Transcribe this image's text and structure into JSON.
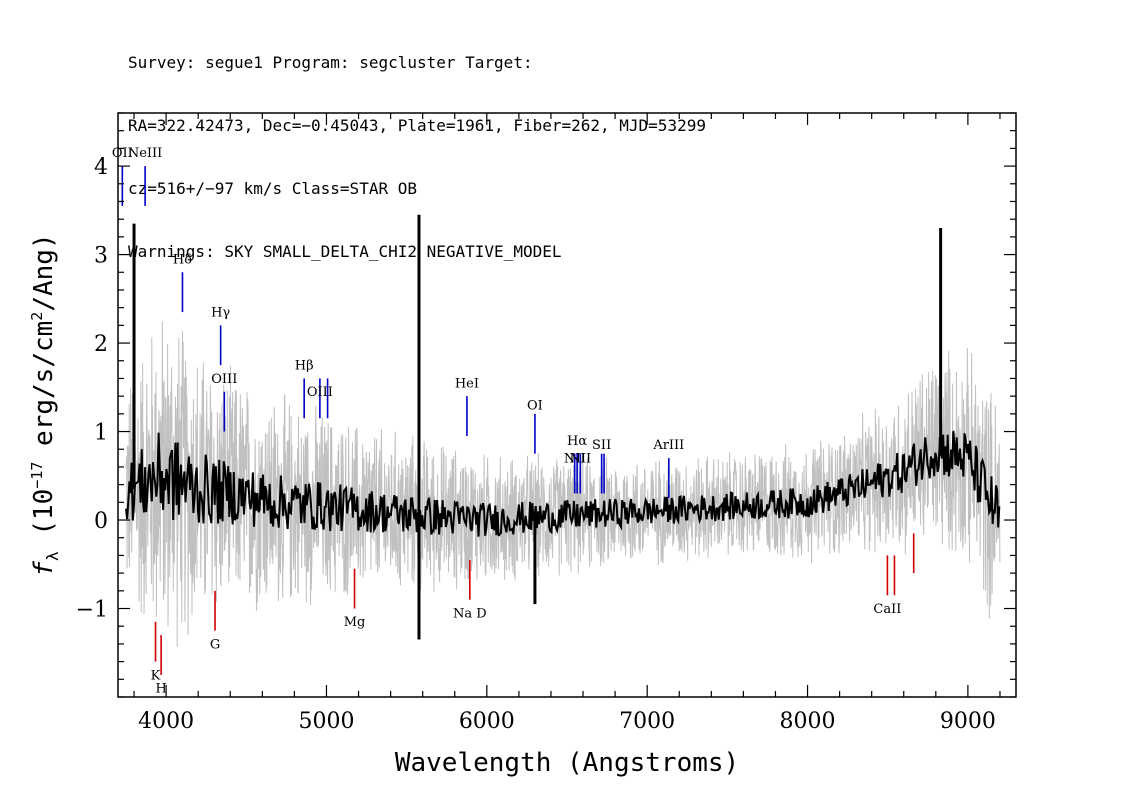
{
  "header": {
    "line1": "Survey: segue1 Program: segcluster Target:",
    "line2": "RA=322.42473, Dec=−0.45043, Plate=1961, Fiber=262, MJD=53299",
    "line3": "cz=516+/−97 km/s Class=STAR OB",
    "line4": "Warnings: SKY SMALL_DELTA_CHI2 NEGATIVE_MODEL"
  },
  "chart_data": {
    "type": "line",
    "xlabel": "Wavelength (Angstroms)",
    "ylabel": "f_λ (10^-17 erg/s/cm^2/Ang)",
    "xlim": [
      3700,
      9300
    ],
    "ylim": [
      -2.0,
      4.6
    ],
    "x_ticks": [
      4000,
      5000,
      6000,
      7000,
      8000,
      9000
    ],
    "y_ticks": [
      -1,
      0,
      1,
      2,
      3,
      4
    ],
    "series": [
      {
        "role": "error",
        "color": "#c0c0c0",
        "x": [
          3750,
          3850,
          3950,
          4050,
          4200,
          4400,
          4700,
          5000,
          5300,
          5600,
          6000,
          6500,
          7000,
          7500,
          8000,
          8300,
          8600,
          8800,
          9000,
          9200
        ],
        "y": [
          0.9,
          1.2,
          1.4,
          1.4,
          1.2,
          1.0,
          0.9,
          0.8,
          0.7,
          0.65,
          0.55,
          0.5,
          0.45,
          0.45,
          0.5,
          0.55,
          0.7,
          0.85,
          0.9,
          1.0
        ]
      },
      {
        "role": "flux",
        "color": "#000000",
        "x": [
          3750,
          3850,
          3950,
          4050,
          4200,
          4400,
          4700,
          5000,
          5300,
          5600,
          6000,
          6500,
          7000,
          7500,
          8000,
          8300,
          8600,
          8800,
          9000,
          9200
        ],
        "y": [
          0.3,
          0.4,
          0.5,
          0.45,
          0.35,
          0.3,
          0.2,
          0.15,
          0.1,
          0.05,
          0.0,
          0.05,
          0.1,
          0.15,
          0.2,
          0.35,
          0.55,
          0.8,
          0.7,
          0.0
        ]
      },
      {
        "role": "flux-spikes",
        "color": "#000000",
        "x": [
          3800,
          5577,
          5577,
          6300,
          8830
        ],
        "y": [
          3.35,
          3.45,
          -1.35,
          -0.95,
          3.3
        ]
      }
    ],
    "annotations": [
      {
        "label": "OII",
        "x": 3727,
        "y1": 4.0,
        "y2": 3.55,
        "color": "#0000c8",
        "label_y": 4.1
      },
      {
        "label": "NeIII",
        "x": 3869,
        "y1": 4.0,
        "y2": 3.55,
        "color": "#0000c8",
        "label_y": 4.1
      },
      {
        "label": "Hδ",
        "x": 4102,
        "y1": 2.8,
        "y2": 2.35,
        "color": "#0000c8",
        "label_y": 2.9
      },
      {
        "label": "Hγ",
        "x": 4340,
        "y1": 2.2,
        "y2": 1.75,
        "color": "#0000c8",
        "label_y": 2.3
      },
      {
        "label": "OIII",
        "x": 4363,
        "y1": 1.45,
        "y2": 1.0,
        "color": "#0000c8",
        "label_y": 1.55
      },
      {
        "label": "Hβ",
        "x": 4861,
        "y1": 1.6,
        "y2": 1.15,
        "color": "#0000c8",
        "label_y": 1.7
      },
      {
        "label": "OIII",
        "x": 4959,
        "y1": 1.6,
        "y2": 1.15,
        "color": "#0000c8",
        "label_y": 1.4
      },
      {
        "label": "OIII",
        "x": 5007,
        "y1": 1.6,
        "y2": 1.15,
        "color": "#0000c8",
        "label_y": -999
      },
      {
        "label": "HeI",
        "x": 5876,
        "y1": 1.4,
        "y2": 0.95,
        "color": "#0000c8",
        "label_y": 1.5
      },
      {
        "label": "OI",
        "x": 6300,
        "y1": 1.2,
        "y2": 0.75,
        "color": "#0000c8",
        "label_y": 1.25
      },
      {
        "label": "NII",
        "x": 6548,
        "y1": 0.75,
        "y2": 0.3,
        "color": "#0000c8",
        "label_y": 0.65
      },
      {
        "label": "Hα",
        "x": 6563,
        "y1": 0.75,
        "y2": 0.3,
        "color": "#0000c8",
        "label_y": 0.85
      },
      {
        "label": "NII",
        "x": 6583,
        "y1": 0.75,
        "y2": 0.3,
        "color": "#0000c8",
        "label_y": 0.65
      },
      {
        "label": "SII",
        "x": 6716,
        "y1": 0.75,
        "y2": 0.3,
        "color": "#0000c8",
        "label_y": 0.8
      },
      {
        "label": "SII",
        "x": 6731,
        "y1": 0.75,
        "y2": 0.3,
        "color": "#0000c8",
        "label_y": -999
      },
      {
        "label": "ArIII",
        "x": 7135,
        "y1": 0.7,
        "y2": 0.25,
        "color": "#0000c8",
        "label_y": 0.8
      },
      {
        "label": "K",
        "x": 3934,
        "y1": -1.15,
        "y2": -1.6,
        "color": "#d00000",
        "label_y": -1.8
      },
      {
        "label": "H",
        "x": 3969,
        "y1": -1.3,
        "y2": -1.75,
        "color": "#d00000",
        "label_y": -1.95
      },
      {
        "label": "G",
        "x": 4305,
        "y1": -0.8,
        "y2": -1.25,
        "color": "#d00000",
        "label_y": -1.45
      },
      {
        "label": "Mg",
        "x": 5175,
        "y1": -0.55,
        "y2": -1.0,
        "color": "#d00000",
        "label_y": -1.2
      },
      {
        "label": "Na D",
        "x": 5894,
        "y1": -0.45,
        "y2": -0.9,
        "color": "#d00000",
        "label_y": -1.1
      },
      {
        "label": "CaII",
        "x": 8498,
        "y1": -0.4,
        "y2": -0.85,
        "color": "#d00000",
        "label_y": -1.05
      },
      {
        "label": "CaII",
        "x": 8542,
        "y1": -0.4,
        "y2": -0.85,
        "color": "#d00000",
        "label_y": -999
      },
      {
        "label": "CaII",
        "x": 8662,
        "y1": -0.15,
        "y2": -0.6,
        "color": "#d00000",
        "label_y": -999
      }
    ]
  }
}
